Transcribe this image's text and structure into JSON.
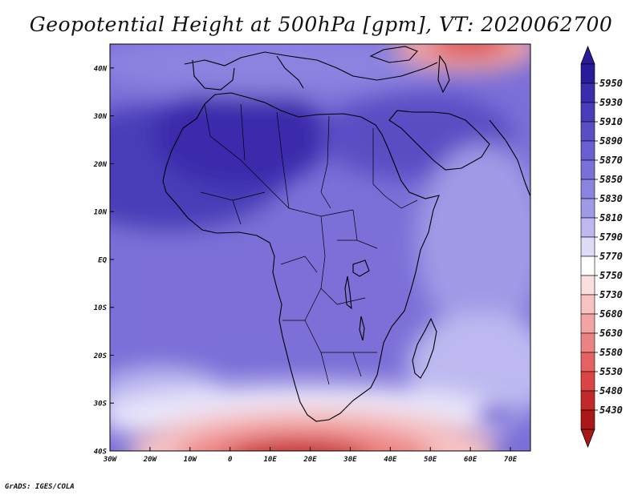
{
  "title": "Geopotential Height at 500hPa [gpm], VT: 2020062700",
  "footer": "GrADS: IGES/COLA",
  "map": {
    "variable": "Geopotential Height at 500hPa",
    "units": "gpm",
    "valid_time": "2020062700",
    "lat_range": [
      -40,
      45
    ],
    "lon_range": [
      -30,
      75
    ],
    "lat_ticks": [
      "40N",
      "30N",
      "20N",
      "10N",
      "EQ",
      "10S",
      "20S",
      "30S",
      "40S"
    ],
    "lon_ticks": [
      "30W",
      "20W",
      "10W",
      "0",
      "10E",
      "20E",
      "30E",
      "40E",
      "50E",
      "60E",
      "70E"
    ]
  },
  "colorbar": {
    "levels": [
      "5950",
      "5930",
      "5910",
      "5890",
      "5870",
      "5850",
      "5830",
      "5810",
      "5790",
      "5770",
      "5750",
      "5730",
      "5680",
      "5630",
      "5580",
      "5530",
      "5480",
      "5430"
    ],
    "colors": [
      "#2a1b9a",
      "#3a2cab",
      "#4a3cb8",
      "#5a4ec4",
      "#6a5ed0",
      "#7b6fd8",
      "#8c82e0",
      "#a09ae6",
      "#bdb9f0",
      "#dddcf8",
      "#ffffff",
      "#fbdede",
      "#f7c2c2",
      "#f2a3a3",
      "#ec8383",
      "#e46262",
      "#d94545",
      "#c22a2a",
      "#a81818"
    ],
    "top_color": "#2a1b9a",
    "bottom_color": "#a81818"
  },
  "colors": {
    "land_outline": "#000000",
    "frame": "#000000"
  }
}
